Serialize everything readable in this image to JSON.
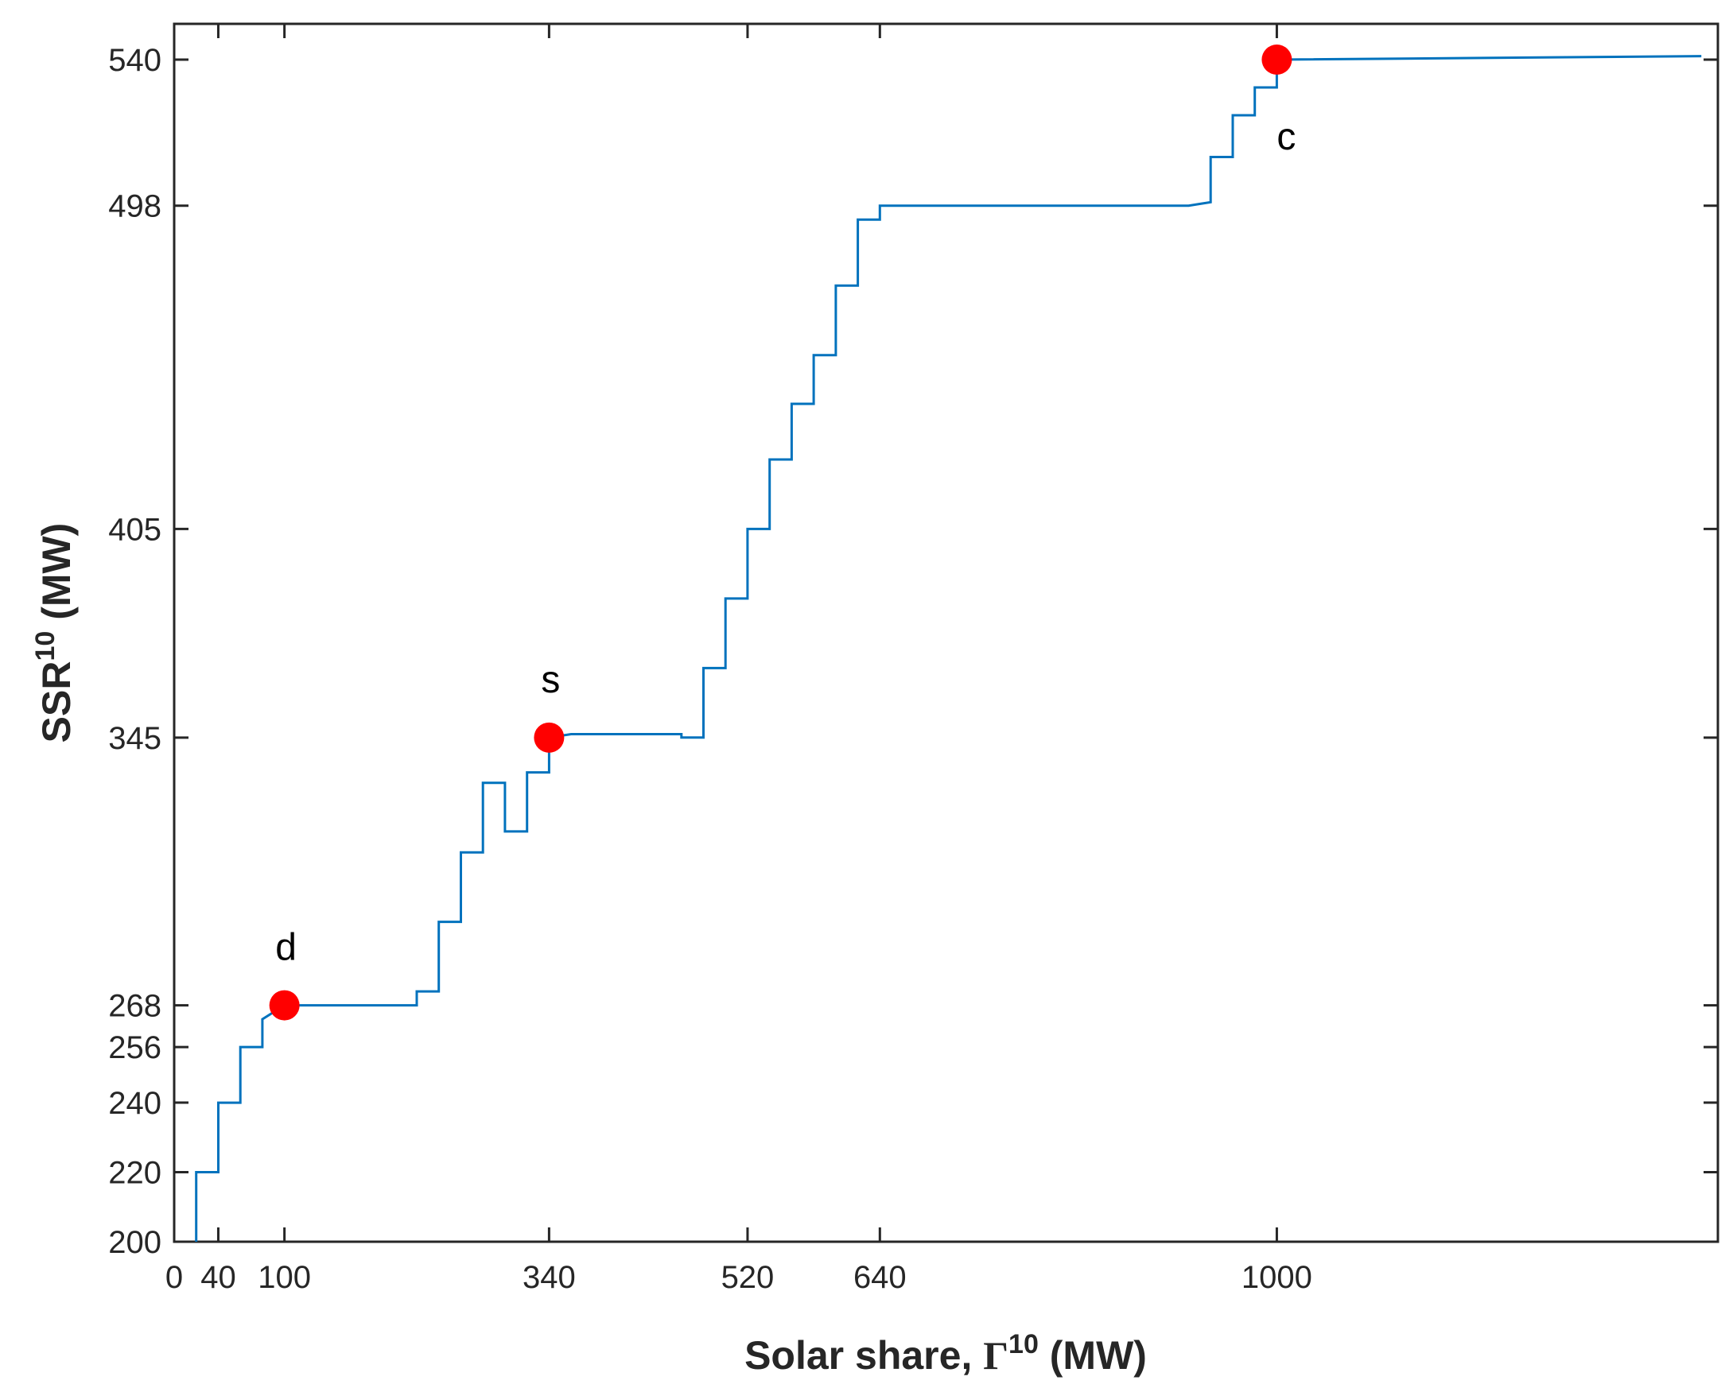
{
  "chart_data": {
    "type": "line",
    "style": "step",
    "xlabel": {
      "main": "Solar share, ",
      "symbol": "Γ",
      "sup": "10",
      "unit": " (MW)"
    },
    "ylabel": {
      "main": "SSR",
      "sup": "10",
      "unit": " (MW)"
    },
    "xlim": [
      0,
      1400
    ],
    "ylim": [
      200,
      543
    ],
    "xticks": [
      0,
      40,
      100,
      340,
      520,
      640,
      1000
    ],
    "yticks": [
      200,
      220,
      240,
      256,
      268,
      345,
      405,
      498,
      540
    ],
    "grid": false,
    "series": [
      {
        "name": "SSR",
        "color": "#0072BD",
        "x": [
          20,
          20,
          40,
          40,
          60,
          60,
          80,
          80,
          100,
          220,
          220,
          240,
          240,
          260,
          260,
          280,
          280,
          300,
          300,
          320,
          320,
          340,
          340,
          360,
          460,
          460,
          480,
          480,
          500,
          500,
          520,
          520,
          540,
          540,
          560,
          560,
          580,
          580,
          600,
          600,
          620,
          620,
          640,
          640,
          920,
          940,
          940,
          960,
          960,
          980,
          980,
          1000,
          1000,
          1385
        ],
        "y": [
          200,
          220,
          220,
          240,
          240,
          256,
          256,
          264,
          268,
          268,
          272,
          272,
          292,
          292,
          312,
          312,
          332,
          332,
          318,
          318,
          335,
          335,
          345,
          346,
          346,
          345,
          345,
          365,
          365,
          385,
          385,
          405,
          405,
          425,
          425,
          441,
          441,
          455,
          455,
          475,
          475,
          494,
          494,
          498,
          498,
          499,
          512,
          512,
          524,
          524,
          532,
          532,
          540,
          541
        ]
      }
    ],
    "highlighted_points": [
      {
        "label": "d",
        "x": 100,
        "y": 268,
        "color": "#FF0000"
      },
      {
        "label": "s",
        "x": 340,
        "y": 345,
        "color": "#FF0000"
      },
      {
        "label": "c",
        "x": 1000,
        "y": 540,
        "color": "#FF0000"
      }
    ]
  }
}
